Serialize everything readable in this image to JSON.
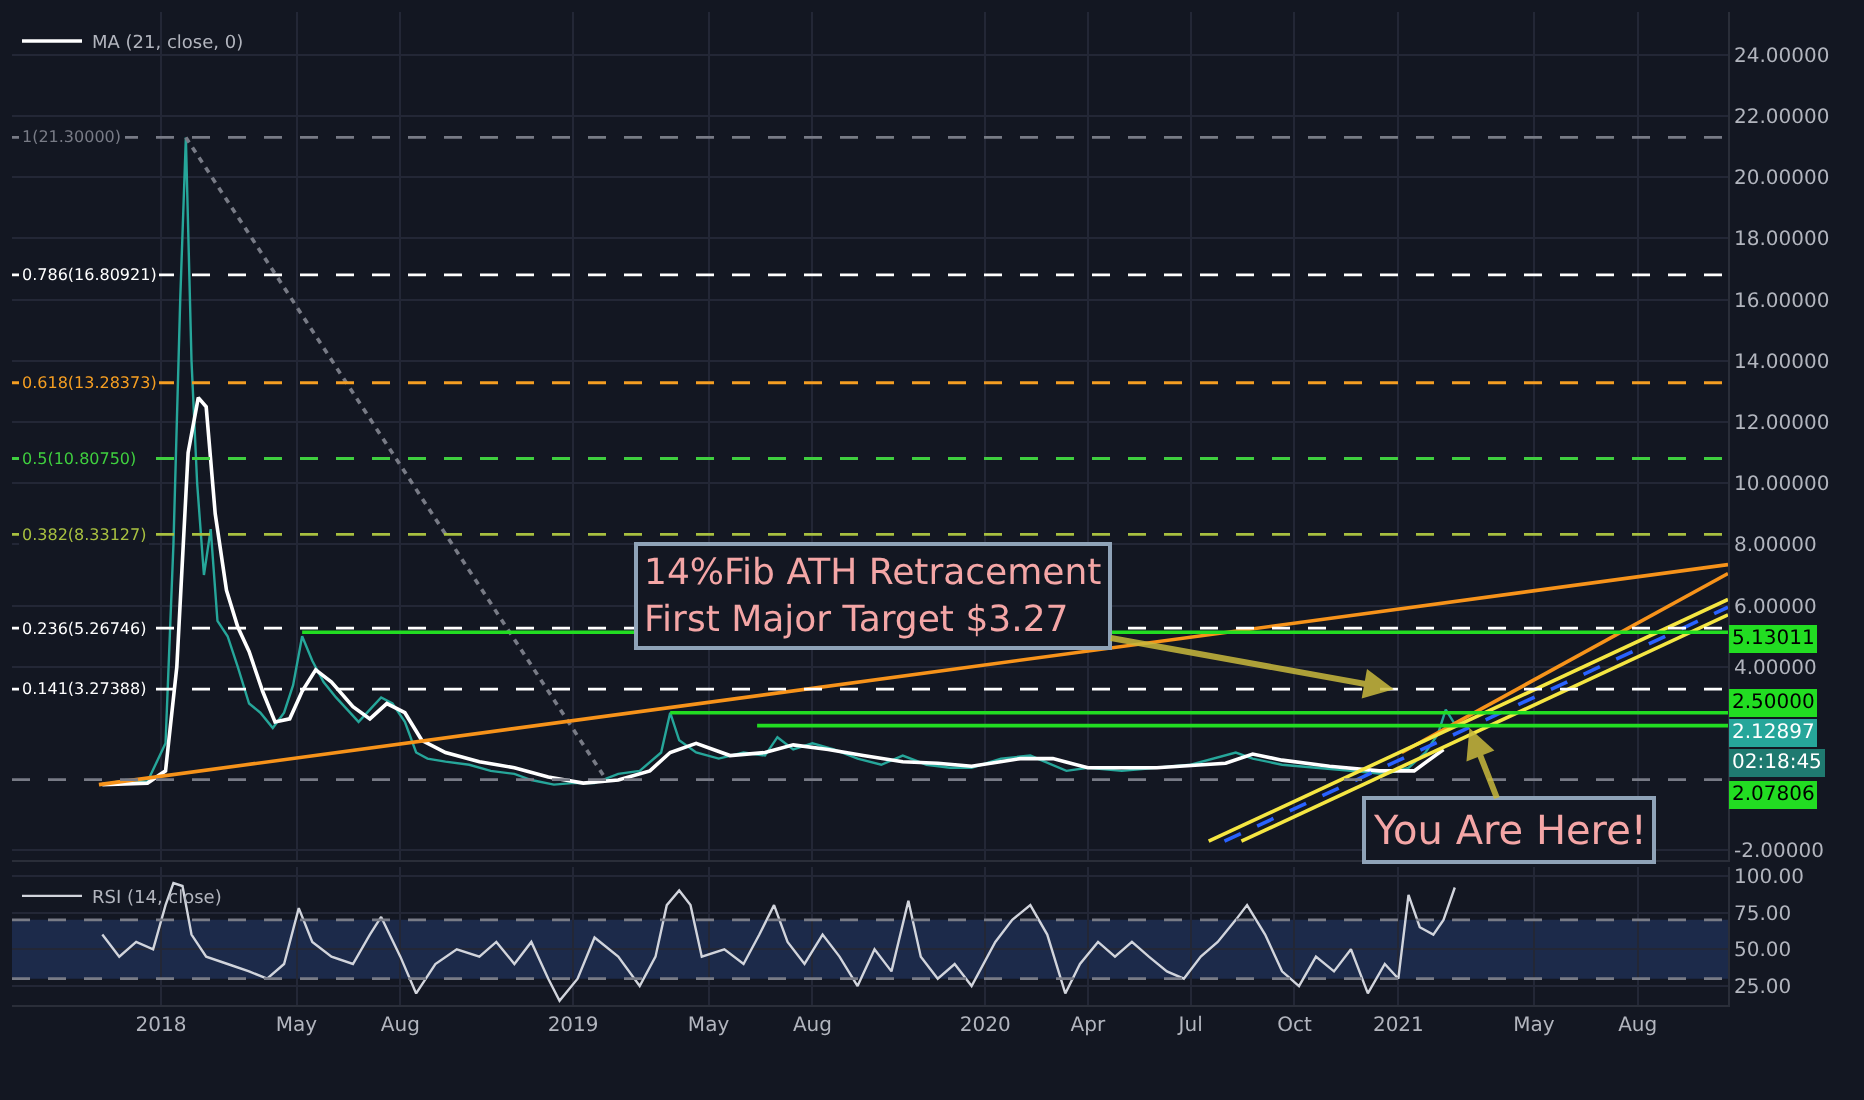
{
  "chart_data": [
    {
      "type": "line",
      "xlim": [
        "2017-08-22",
        "2021-10-20"
      ],
      "xticks": [
        {
          "value": "2018-01-01",
          "label": null
        },
        {
          "value": "2018-05-01",
          "label": null
        },
        {
          "value": "2018-08-01",
          "label": null
        },
        {
          "value": "2019-01-01",
          "label": null
        },
        {
          "value": "2019-05-01",
          "label": null
        },
        {
          "value": "2019-08-01",
          "label": null
        },
        {
          "value": "2020-01-01",
          "label": null
        },
        {
          "value": "2020-04-01",
          "label": null
        },
        {
          "value": "2020-07-01",
          "label": null
        },
        {
          "value": "2020-10-01",
          "label": null
        },
        {
          "value": "2021-01-01",
          "label": null
        },
        {
          "value": "2021-05-01",
          "label": null
        },
        {
          "value": "2021-08-01",
          "label": null
        }
      ],
      "ylim": [
        -2.3,
        25.4
      ],
      "yticks": [
        {
          "value": -2,
          "label": "-2.00000"
        },
        {
          "value": 4,
          "label": "4.00000"
        },
        {
          "value": 6,
          "label": "6.00000"
        },
        {
          "value": 8,
          "label": "8.00000"
        },
        {
          "value": 10,
          "label": "10.00000"
        },
        {
          "value": 12,
          "label": "12.00000"
        },
        {
          "value": 14,
          "label": "14.00000"
        },
        {
          "value": 16,
          "label": "16.00000"
        },
        {
          "value": 18,
          "label": "18.00000"
        },
        {
          "value": 20,
          "label": "20.00000"
        },
        {
          "value": 22,
          "label": "22.00000"
        },
        {
          "value": 24,
          "label": "24.00000"
        }
      ],
      "tick_labels": "y",
      "grid": true,
      "legend": "top left",
      "series": [
        {
          "color": "#26a69a",
          "x": [
            "2017-11-10",
            "2017-12-01",
            "2017-12-20",
            "2018-01-05",
            "2018-01-12",
            "2018-01-18",
            "2018-01-23",
            "2018-01-28",
            "2018-02-02",
            "2018-02-08",
            "2018-02-14",
            "2018-02-20",
            "2018-03-01",
            "2018-03-10",
            "2018-03-20",
            "2018-03-30",
            "2018-04-10",
            "2018-04-20",
            "2018-04-28",
            "2018-05-06",
            "2018-05-15",
            "2018-05-25",
            "2018-06-05",
            "2018-06-15",
            "2018-06-25",
            "2018-07-05",
            "2018-07-15",
            "2018-07-25",
            "2018-08-05",
            "2018-08-15",
            "2018-08-25",
            "2018-09-10",
            "2018-10-01",
            "2018-10-20",
            "2018-11-10",
            "2018-11-25",
            "2018-12-15",
            "2018-12-31",
            "2019-01-20",
            "2019-02-10",
            "2019-03-01",
            "2019-03-20",
            "2019-03-28",
            "2019-04-05",
            "2019-04-20",
            "2019-05-10",
            "2019-06-01",
            "2019-06-20",
            "2019-07-01",
            "2019-07-15",
            "2019-08-01",
            "2019-08-20",
            "2019-09-10",
            "2019-10-01",
            "2019-10-20",
            "2019-11-10",
            "2019-12-01",
            "2019-12-20",
            "2020-01-15",
            "2020-02-10",
            "2020-03-13",
            "2020-04-01",
            "2020-05-01",
            "2020-06-01",
            "2020-07-01",
            "2020-08-10",
            "2020-08-25",
            "2020-09-20",
            "2020-10-20",
            "2020-11-20",
            "2020-12-20",
            "2021-01-10",
            "2021-01-25",
            "2021-02-05",
            "2021-02-12",
            "2021-02-20"
          ],
          "values": [
            0.15,
            0.3,
            0.25,
            1.5,
            8,
            16,
            21.3,
            14,
            10,
            7,
            8.5,
            5.5,
            5,
            4,
            2.8,
            2.5,
            2.0,
            2.5,
            3.4,
            5.0,
            4.2,
            3.5,
            3.0,
            2.6,
            2.2,
            2.6,
            3.0,
            2.8,
            2.2,
            1.2,
            1.0,
            0.9,
            0.8,
            0.6,
            0.5,
            0.3,
            0.15,
            0.2,
            0.2,
            0.5,
            0.6,
            1.2,
            2.5,
            1.6,
            1.2,
            1.0,
            1.2,
            1.1,
            1.7,
            1.3,
            1.5,
            1.3,
            1.0,
            0.8,
            1.1,
            0.8,
            0.7,
            0.7,
            1.0,
            1.1,
            0.6,
            0.7,
            0.6,
            0.7,
            0.8,
            1.2,
            1.0,
            0.8,
            0.7,
            0.6,
            0.5,
            0.7,
            1.2,
            1.8,
            2.6,
            2.13
          ]
        },
        {
          "name": "MA (21, close, 0)",
          "color": "#ffffff",
          "x": [
            "2017-11-10",
            "2017-12-20",
            "2018-01-05",
            "2018-01-15",
            "2018-01-25",
            "2018-02-03",
            "2018-02-10",
            "2018-02-18",
            "2018-02-28",
            "2018-03-10",
            "2018-03-20",
            "2018-04-01",
            "2018-04-12",
            "2018-04-25",
            "2018-05-06",
            "2018-05-18",
            "2018-06-01",
            "2018-06-20",
            "2018-07-05",
            "2018-07-20",
            "2018-08-05",
            "2018-08-20",
            "2018-09-10",
            "2018-10-10",
            "2018-11-10",
            "2018-12-10",
            "2019-01-10",
            "2019-02-10",
            "2019-03-10",
            "2019-03-28",
            "2019-04-20",
            "2019-05-20",
            "2019-06-20",
            "2019-07-15",
            "2019-08-15",
            "2019-09-15",
            "2019-10-20",
            "2019-11-20",
            "2019-12-20",
            "2020-02-01",
            "2020-03-01",
            "2020-04-01",
            "2020-06-01",
            "2020-08-01",
            "2020-08-25",
            "2020-09-20",
            "2020-11-01",
            "2020-12-15",
            "2021-01-15",
            "2021-02-10"
          ],
          "values": [
            0.15,
            0.2,
            0.6,
            4,
            11,
            12.8,
            12.5,
            9,
            6.5,
            5.3,
            4.5,
            3.2,
            2.2,
            2.3,
            3.2,
            3.9,
            3.5,
            2.7,
            2.3,
            2.8,
            2.5,
            1.6,
            1.2,
            0.9,
            0.7,
            0.4,
            0.2,
            0.3,
            0.6,
            1.2,
            1.5,
            1.1,
            1.2,
            1.45,
            1.3,
            1.1,
            0.9,
            0.85,
            0.75,
            1.0,
            1.0,
            0.7,
            0.7,
            0.85,
            1.15,
            0.95,
            0.75,
            0.6,
            0.6,
            1.3
          ]
        },
        {
          "color": "#787b86",
          "line_style": "dotted",
          "x": [
            "2018-01-23",
            "2019-01-30"
          ],
          "values": [
            21.3,
            0.33
          ]
        },
        {
          "color": "#f7931a",
          "x": [
            "2017-11-07",
            "2021-10-20"
          ],
          "values": [
            0.15,
            7.34
          ]
        },
        {
          "color": "#f7931a",
          "x": [
            "2021-01-04",
            "2021-10-20"
          ],
          "values": [
            1.2,
            7.05
          ]
        },
        {
          "color": "#f5e642",
          "x": [
            "2020-07-17",
            "2021-10-20"
          ],
          "values": [
            -1.7,
            6.2
          ]
        },
        {
          "color": "#2962ff",
          "line_style": "dashed",
          "x": [
            "2020-07-31",
            "2021-10-20"
          ],
          "values": [
            -1.7,
            5.95
          ]
        },
        {
          "color": "#f5e642",
          "x": [
            "2020-08-15",
            "2021-10-20"
          ],
          "values": [
            -1.7,
            5.7
          ]
        },
        {
          "color": "#22dd22",
          "x": [
            "2018-05-06",
            "2021-10-20"
          ],
          "values": [
            5.13,
            5.13
          ]
        },
        {
          "color": "#22dd22",
          "x": [
            "2019-03-28",
            "2021-10-20"
          ],
          "values": [
            2.5,
            2.5
          ]
        },
        {
          "color": "#22dd22",
          "x": [
            "2019-06-13",
            "2021-10-20"
          ],
          "values": [
            2.08,
            2.08
          ]
        }
      ],
      "ref_lines": [
        {
          "axis": "y",
          "value": 21.3,
          "label": "1(21.30000)",
          "color": "#787b86",
          "line_style": "dashed"
        },
        {
          "axis": "y",
          "value": 16.80921,
          "label": "0.786(16.80921)",
          "color": "#ffffff",
          "line_style": "dashed"
        },
        {
          "axis": "y",
          "value": 13.28373,
          "label": "0.618(13.28373)",
          "color": "#f59e22",
          "line_style": "dashed"
        },
        {
          "axis": "y",
          "value": 10.8075,
          "label": "0.5(10.80750)",
          "color": "#3fcf3f",
          "line_style": "dashed"
        },
        {
          "axis": "y",
          "value": 8.33127,
          "label": "0.382(8.33127)",
          "color": "#a8c040",
          "line_style": "dashed"
        },
        {
          "axis": "y",
          "value": 5.26746,
          "label": "0.236(5.26746)",
          "color": "#ffffff",
          "line_style": "dashed"
        },
        {
          "axis": "y",
          "value": 3.27388,
          "label": "0.141(3.27388)",
          "color": "#ffffff",
          "line_style": "dashed"
        },
        {
          "axis": "y",
          "value": 0.315,
          "color": "#787b86",
          "line_style": "dashed"
        }
      ],
      "annotations": [
        {
          "text": "14%Fib ATH Retracement\nFirst Major Target $3.27",
          "x": "2020-12-28",
          "y": 3.27
        },
        {
          "text": "You Are Here!",
          "x": "2021-03-05",
          "y": 2.0
        },
        "5.13011",
        "2.50000",
        "2.12897",
        "02:18:45",
        "2.07806"
      ]
    },
    {
      "type": "line",
      "xlim": [
        "2017-08-22",
        "2021-10-20"
      ],
      "xticks": [
        {
          "value": "2018-01-01",
          "label": "2018"
        },
        {
          "value": "2018-05-01",
          "label": "May"
        },
        {
          "value": "2018-08-01",
          "label": "Aug"
        },
        {
          "value": "2019-01-01",
          "label": "2019"
        },
        {
          "value": "2019-05-01",
          "label": "May"
        },
        {
          "value": "2019-08-01",
          "label": "Aug"
        },
        {
          "value": "2020-01-01",
          "label": "2020"
        },
        {
          "value": "2020-04-01",
          "label": "Apr"
        },
        {
          "value": "2020-07-01",
          "label": "Jul"
        },
        {
          "value": "2020-10-01",
          "label": "Oct"
        },
        {
          "value": "2021-01-01",
          "label": "2021"
        },
        {
          "value": "2021-05-01",
          "label": "May"
        },
        {
          "value": "2021-08-01",
          "label": "Aug"
        }
      ],
      "ylim": [
        12,
        106
      ],
      "yticks": [
        {
          "value": 25,
          "label": "25.00"
        },
        {
          "value": 50,
          "label": "50.00"
        },
        {
          "value": 75,
          "label": "75.00"
        },
        {
          "value": 100,
          "label": "100.00"
        }
      ],
      "grid": true,
      "legend": "top left",
      "series": [
        {
          "name": "RSI (14, close)",
          "color": "#d1d4dc",
          "x": [
            "2017-11-10",
            "2017-11-25",
            "2017-12-10",
            "2017-12-25",
            "2018-01-05",
            "2018-01-12",
            "2018-01-20",
            "2018-01-28",
            "2018-02-10",
            "2018-03-01",
            "2018-03-20",
            "2018-04-05",
            "2018-04-20",
            "2018-05-03",
            "2018-05-15",
            "2018-06-01",
            "2018-06-20",
            "2018-07-05",
            "2018-07-15",
            "2018-08-01",
            "2018-08-15",
            "2018-09-01",
            "2018-09-20",
            "2018-10-10",
            "2018-10-25",
            "2018-11-10",
            "2018-11-25",
            "2018-12-10",
            "2018-12-20",
            "2019-01-05",
            "2019-01-20",
            "2019-02-10",
            "2019-03-01",
            "2019-03-15",
            "2019-03-25",
            "2019-04-05",
            "2019-04-15",
            "2019-04-25",
            "2019-05-15",
            "2019-06-01",
            "2019-06-15",
            "2019-06-28",
            "2019-07-10",
            "2019-07-25",
            "2019-08-10",
            "2019-08-25",
            "2019-09-10",
            "2019-09-25",
            "2019-10-10",
            "2019-10-25",
            "2019-11-05",
            "2019-11-20",
            "2019-12-05",
            "2019-12-20",
            "2020-01-10",
            "2020-01-25",
            "2020-02-10",
            "2020-02-25",
            "2020-03-12",
            "2020-03-25",
            "2020-04-10",
            "2020-04-25",
            "2020-05-10",
            "2020-05-25",
            "2020-06-10",
            "2020-06-25",
            "2020-07-10",
            "2020-07-25",
            "2020-08-10",
            "2020-08-20",
            "2020-09-05",
            "2020-09-20",
            "2020-10-05",
            "2020-10-20",
            "2020-11-05",
            "2020-11-20",
            "2020-12-05",
            "2020-12-20",
            "2021-01-01",
            "2021-01-10",
            "2021-01-20",
            "2021-02-01",
            "2021-02-10",
            "2021-02-20"
          ],
          "values": [
            60,
            45,
            55,
            50,
            80,
            95,
            93,
            60,
            45,
            40,
            35,
            30,
            40,
            78,
            55,
            45,
            40,
            60,
            72,
            45,
            20,
            40,
            50,
            45,
            55,
            40,
            55,
            30,
            15,
            30,
            58,
            45,
            25,
            45,
            80,
            90,
            80,
            45,
            50,
            40,
            60,
            80,
            55,
            40,
            60,
            45,
            25,
            50,
            35,
            83,
            45,
            30,
            40,
            25,
            55,
            70,
            80,
            60,
            20,
            40,
            55,
            45,
            55,
            45,
            35,
            30,
            45,
            55,
            70,
            80,
            60,
            35,
            25,
            45,
            35,
            50,
            20,
            40,
            30,
            87,
            65,
            60,
            70,
            92
          ]
        }
      ],
      "ref_lines": [
        {
          "axis": "y",
          "value": 70,
          "color": "#787b86",
          "line_style": "dashed"
        },
        {
          "axis": "y",
          "value": 30,
          "color": "#787b86",
          "line_style": "dashed"
        }
      ],
      "bands": [
        {
          "axis": "y",
          "from": 30,
          "to": 70,
          "color": "#1c2a4a"
        }
      ]
    }
  ]
}
